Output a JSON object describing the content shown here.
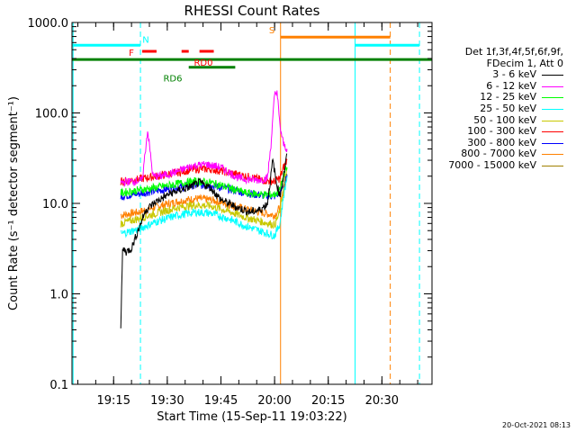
{
  "chart_data": {
    "type": "line",
    "title": "RHESSI Count Rates",
    "xlabel": "Start Time (15-Sep-11 19:03:22)",
    "ylabel": "Count Rate (s⁻¹ detector segment⁻¹)",
    "yscale": "log",
    "ylim": [
      0.1,
      1000
    ],
    "xlim": [
      "19:03:22",
      "20:44:00"
    ],
    "x_ticks": [
      "19:15",
      "19:30",
      "19:45",
      "20:00",
      "20:15",
      "20:30"
    ],
    "y_ticks": [
      "0.1",
      "1.0",
      "10.0",
      "100.0",
      "1000.0"
    ],
    "legend_header": [
      "Det 1f,3f,4f,5f,6f,9f,",
      "FDecim 1, Att 0"
    ],
    "legend_placement": "right",
    "series": [
      {
        "name": "3 - 6 keV",
        "color": "#000000",
        "x": [
          "19:17:00",
          "19:17:30",
          "19:18",
          "19:18:30",
          "19:20",
          "19:24",
          "19:27",
          "19:31",
          "19:36",
          "19:39",
          "19:42",
          "19:45",
          "19:49",
          "19:53",
          "19:56",
          "19:58",
          "19:59:30",
          "20:00:30",
          "20:01:30",
          "20:02:30",
          "20:03:30"
        ],
        "values": [
          0.4,
          3.0,
          3.1,
          2.9,
          3.2,
          8.5,
          10.5,
          13,
          15,
          17,
          15,
          11,
          9.2,
          8,
          8.5,
          10,
          30,
          17,
          12,
          20,
          35
        ]
      },
      {
        "name": "6 - 12 keV",
        "color": "#ff00ff",
        "x": [
          "19:17:00",
          "19:20",
          "19:23",
          "19:24:30",
          "19:26",
          "19:28",
          "19:32",
          "19:37",
          "19:41",
          "19:45",
          "19:50",
          "19:55",
          "19:58",
          "19:59",
          "20:00",
          "20:00:40",
          "20:01:30",
          "20:02:30",
          "20:03:30"
        ],
        "values": [
          17,
          17.5,
          18,
          65,
          20,
          20,
          22,
          26,
          27,
          25,
          19,
          18,
          19,
          45,
          160,
          175,
          70,
          45,
          40
        ]
      },
      {
        "name": "12 - 25 keV",
        "color": "#00ff00",
        "x": [
          "19:17:00",
          "19:22",
          "19:27",
          "19:33",
          "19:38",
          "19:42",
          "19:47",
          "19:52",
          "19:57",
          "20:00",
          "20:01:30",
          "20:02:30",
          "20:03:30"
        ],
        "values": [
          13,
          14,
          15,
          16.5,
          17.5,
          17,
          15,
          13,
          12.5,
          12.5,
          14,
          20,
          25
        ]
      },
      {
        "name": "25 - 50 keV",
        "color": "#00ffff",
        "x": [
          "19:17:00",
          "19:22",
          "19:27",
          "19:33",
          "19:38",
          "19:42",
          "19:47",
          "19:52",
          "19:57",
          "20:00",
          "20:01:30",
          "20:02:30",
          "20:03:30"
        ],
        "values": [
          4.6,
          5.2,
          6.3,
          7.4,
          8,
          7.8,
          6.8,
          5.6,
          4.8,
          4.4,
          6,
          12,
          20
        ]
      },
      {
        "name": "50 - 100 keV",
        "color": "#c8c800",
        "x": [
          "19:17:00",
          "19:22",
          "19:27",
          "19:33",
          "19:38",
          "19:42",
          "19:47",
          "19:52",
          "19:57",
          "20:00",
          "20:01:30",
          "20:02:30",
          "20:03:30"
        ],
        "values": [
          6,
          6.8,
          7.8,
          9,
          9.6,
          9.4,
          8.2,
          7,
          6.2,
          5.8,
          8,
          15,
          25
        ]
      },
      {
        "name": "100 - 300 keV",
        "color": "#ff0000",
        "x": [
          "19:17:00",
          "19:22",
          "19:27",
          "19:33",
          "19:38",
          "19:42",
          "19:47",
          "19:52",
          "19:57",
          "20:00",
          "20:01:30",
          "20:02:30",
          "20:03:30"
        ],
        "values": [
          17.5,
          18.5,
          20,
          22,
          24,
          24,
          22,
          20,
          18,
          17.5,
          19,
          25,
          30
        ]
      },
      {
        "name": "300 - 800 keV",
        "color": "#0000ff",
        "x": [
          "19:17:00",
          "19:22",
          "19:27",
          "19:33",
          "19:38",
          "19:42",
          "19:47",
          "19:52",
          "19:57",
          "20:00",
          "20:01:30",
          "20:02:30",
          "20:03:30"
        ],
        "values": [
          12,
          12.8,
          13.8,
          15,
          16,
          15.8,
          14.5,
          13,
          12.2,
          12,
          13,
          16,
          20
        ]
      },
      {
        "name": "800 - 7000 keV",
        "color": "#ff8000",
        "x": [
          "19:17:00",
          "19:22",
          "19:27",
          "19:33",
          "19:38",
          "19:42",
          "19:47",
          "19:52",
          "19:57",
          "20:00",
          "20:01:30",
          "20:02:30",
          "20:03:30"
        ],
        "values": [
          7.4,
          8,
          9.2,
          10.5,
          11.3,
          11,
          9.8,
          8.6,
          7.8,
          7.4,
          9,
          14,
          20
        ]
      },
      {
        "name": "7000 - 15000 keV",
        "color": "#a08000",
        "x": [],
        "values": []
      }
    ],
    "annotations": {
      "vertical_lines": [
        {
          "time": "19:03:40",
          "color": "#00ffff",
          "style": "solid"
        },
        {
          "time": "19:22:30",
          "color": "#00ffff",
          "style": "dashed"
        },
        {
          "time": "20:01:40",
          "color": "#ff8000",
          "style": "solid"
        },
        {
          "time": "20:22:30",
          "color": "#00ffff",
          "style": "solid"
        },
        {
          "time": "20:32:20",
          "color": "#ff8000",
          "style": "dashed"
        },
        {
          "time": "20:40:30",
          "color": "#00ffff",
          "style": "dashed"
        }
      ],
      "flag_bars": [
        {
          "label": "N",
          "color": "#00ffff",
          "segments": [
            [
              "19:03:22",
              "19:22:30"
            ],
            [
              "20:22:30",
              "20:40:30"
            ]
          ],
          "level": 560
        },
        {
          "label": "S",
          "color": "#ff8000",
          "segments": [
            [
              "20:01:40",
              "20:32:20"
            ]
          ],
          "level": 690
        },
        {
          "label": "F",
          "color": "#ff0000",
          "segments": [
            [
              "19:23",
              "19:27"
            ],
            [
              "19:34",
              "19:36"
            ]
          ],
          "level": 480
        },
        {
          "label": "RD0",
          "color": "#ff0000",
          "segments": [
            [
              "19:39",
              "19:43"
            ]
          ],
          "level": 480
        },
        {
          "label": "RD6",
          "color": "#008000",
          "segments": [
            [
              "19:36",
              "19:49"
            ]
          ],
          "level": 320
        },
        {
          "label": "",
          "color": "#008000",
          "segments": [
            [
              "19:03:22",
              "20:44:00"
            ]
          ],
          "level": 390
        }
      ]
    }
  },
  "timestamp": "20-Oct-2021 08:13"
}
